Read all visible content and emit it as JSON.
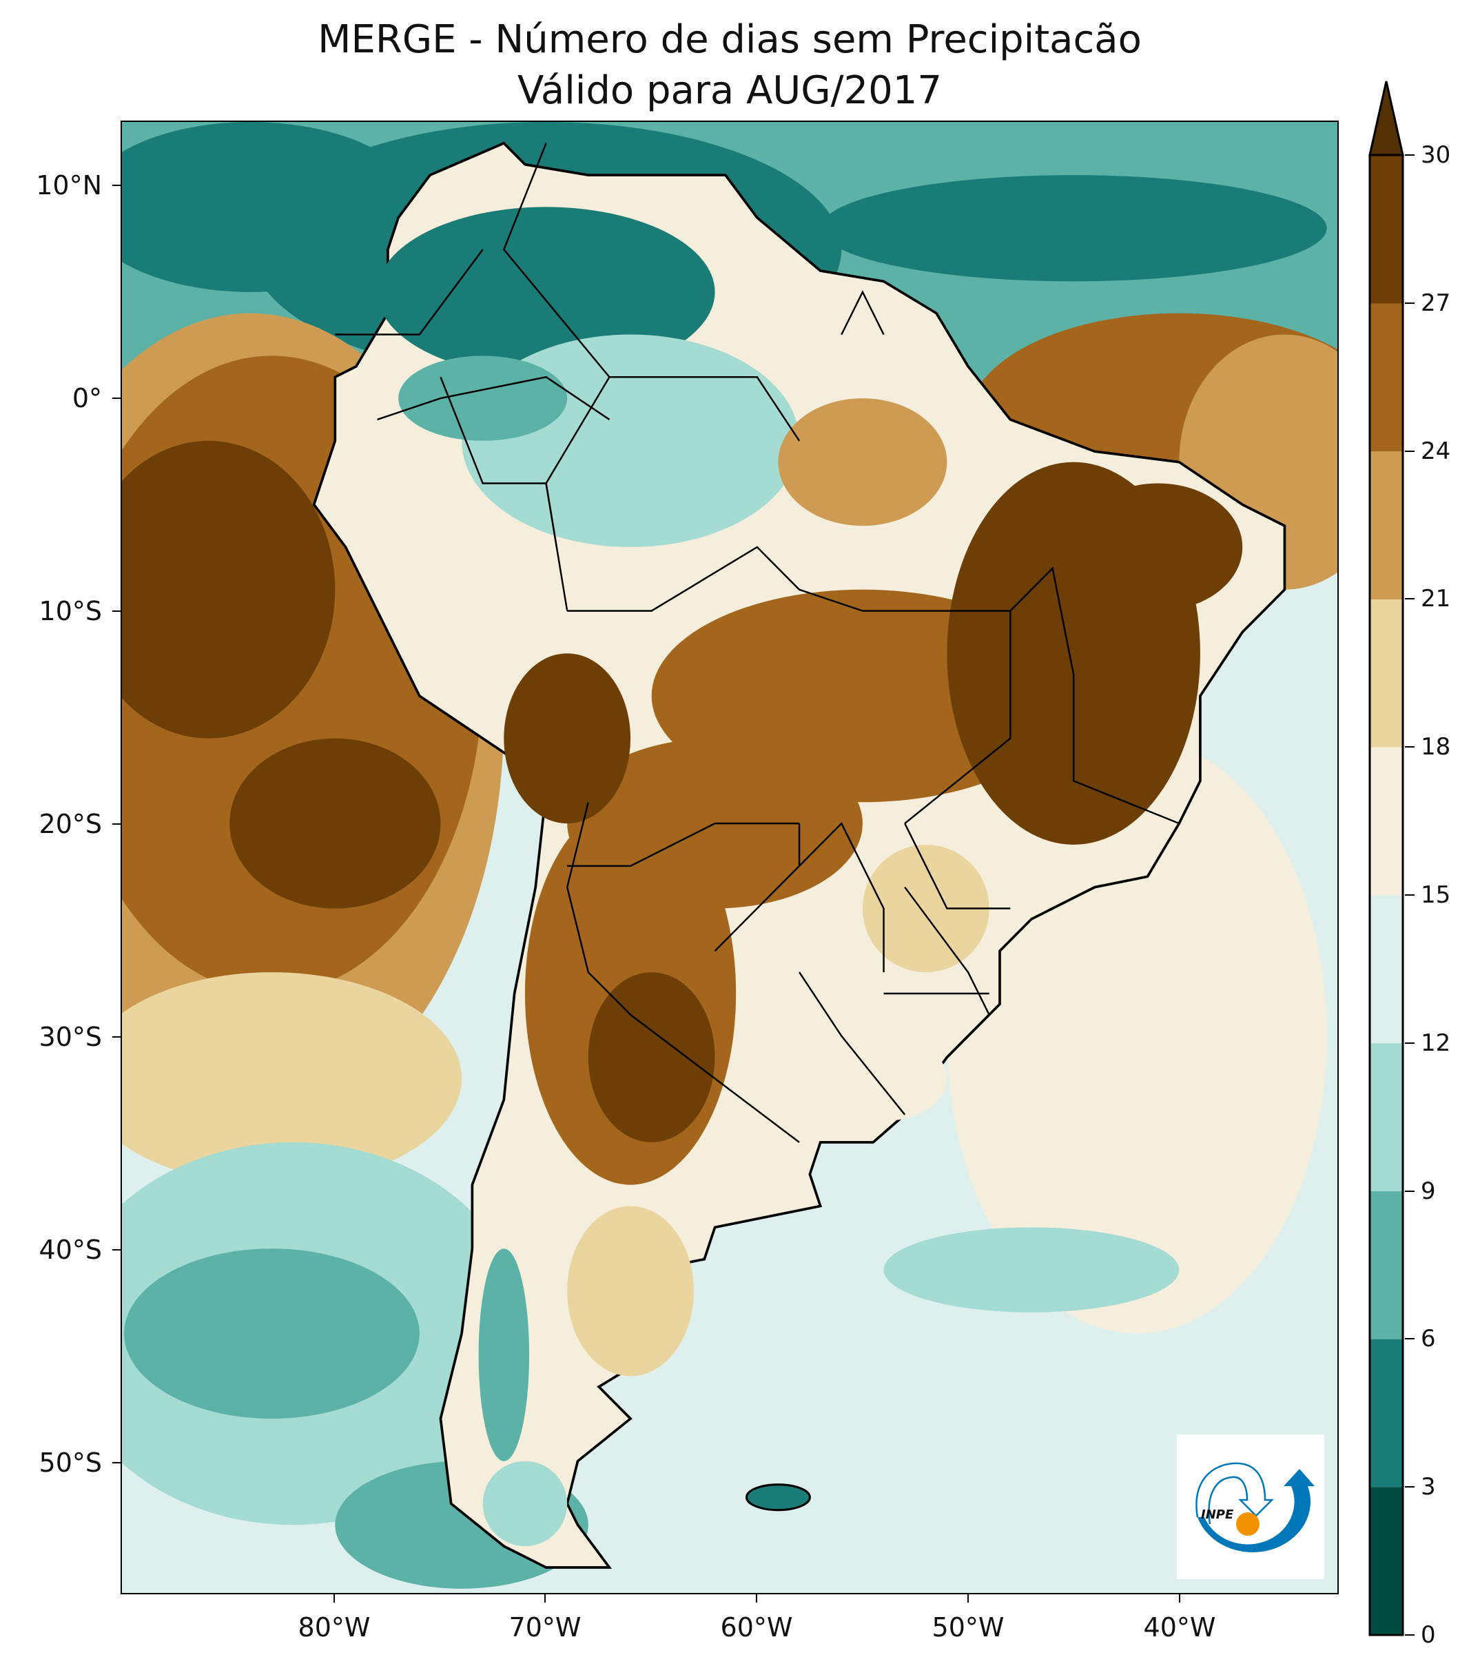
{
  "title": {
    "line1": "MERGE - Número de dias sem Precipitacão",
    "line2": "Válido para AUG/2017"
  },
  "map": {
    "projection": "lat-lon",
    "extent_lon": [
      -90,
      -32.5
    ],
    "extent_lat": [
      -56,
      13
    ],
    "lon_ticks": [
      "80°W",
      "70°W",
      "60°W",
      "50°W",
      "40°W"
    ],
    "lat_ticks": [
      "10°N",
      "0°",
      "10°S",
      "20°S",
      "30°S",
      "40°S",
      "50°S"
    ]
  },
  "colorbar": {
    "levels": [
      0,
      3,
      6,
      9,
      12,
      15,
      18,
      21,
      24,
      27,
      30
    ],
    "labels": [
      "0",
      "3",
      "6",
      "9",
      "12",
      "15",
      "18",
      "21",
      "24",
      "27",
      "30"
    ],
    "colors": [
      "#004c42",
      "#1a7c76",
      "#5cb2a7",
      "#a4dbd2",
      "#ddf0ee",
      "#f5eedc",
      "#ead59e",
      "#cd9b52",
      "#a3661c",
      "#6e3e07"
    ],
    "extend_color": "#543005",
    "extend": "max"
  },
  "logo": {
    "text": "INPE",
    "colors": {
      "blue": "#0077b8",
      "orange": "#f39200"
    }
  }
}
